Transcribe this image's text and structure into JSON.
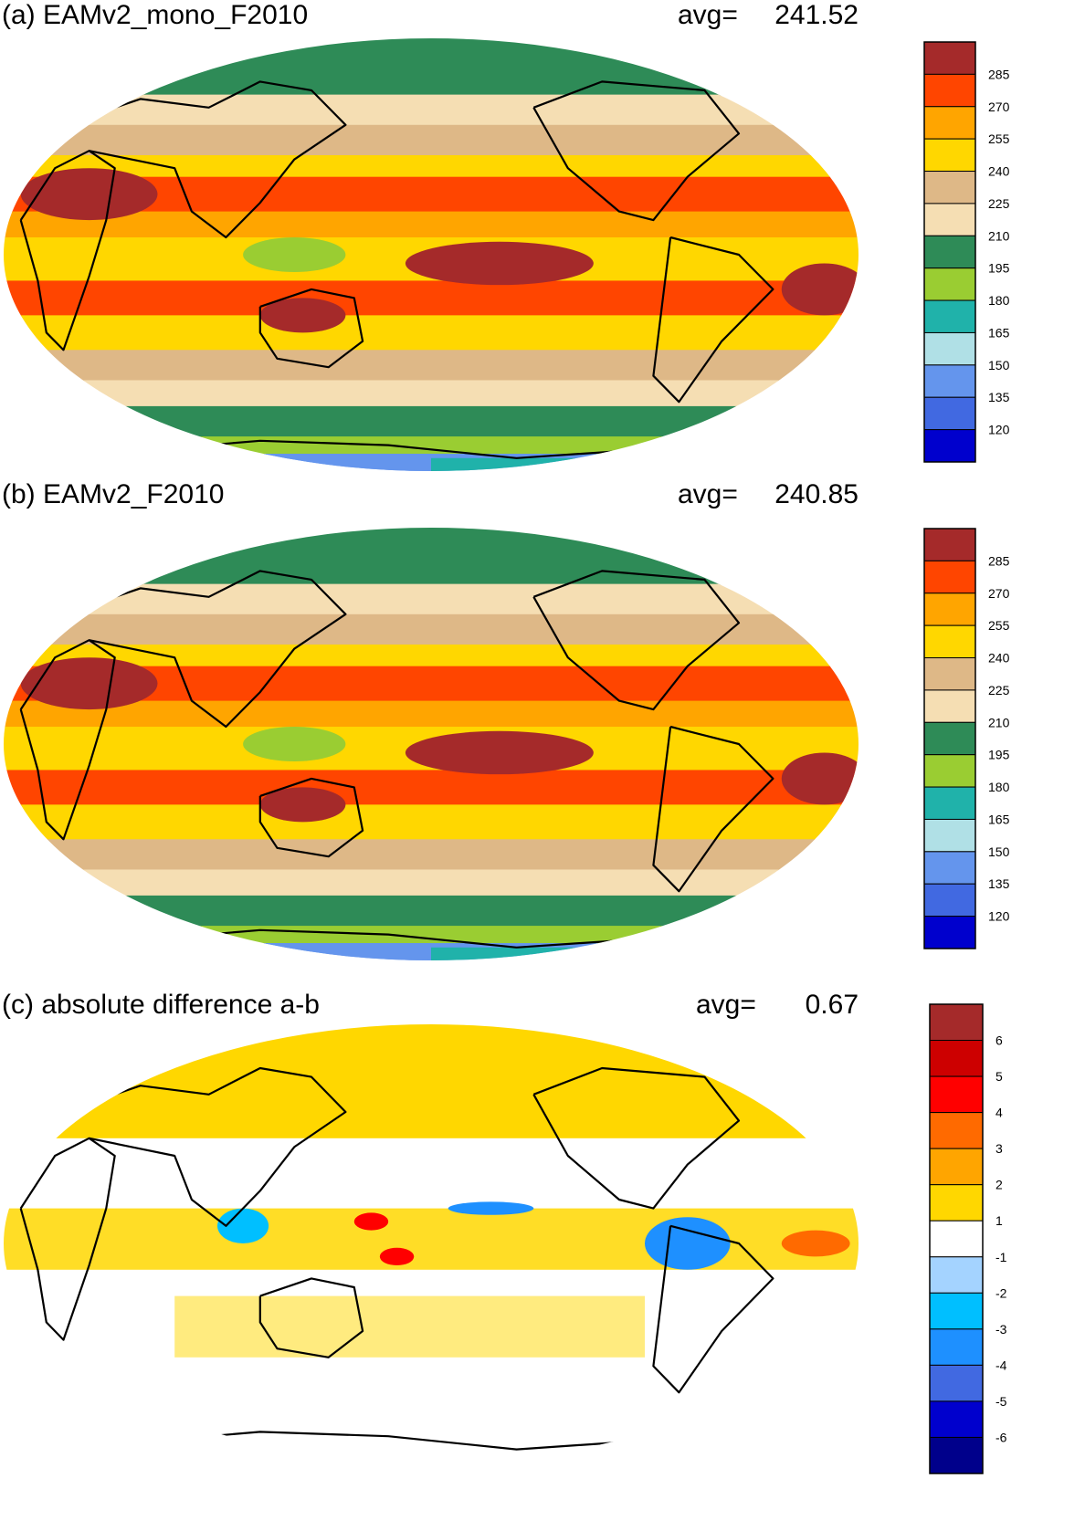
{
  "panels": [
    {
      "id": "a",
      "title": "(a) EAMv2_mono_F2010",
      "avg_label": "avg=",
      "avg_value": "241.52",
      "colorbar": {
        "colors": [
          "#a52a2a",
          "#ff4500",
          "#ffa500",
          "#ffd700",
          "#deb887",
          "#f5deb3",
          "#2e8b57",
          "#9acd32",
          "#20b2aa",
          "#b0e0e6",
          "#6495ed",
          "#4169e1",
          "#0000cd"
        ],
        "labels": [
          "285",
          "270",
          "255",
          "240",
          "225",
          "210",
          "195",
          "180",
          "165",
          "150",
          "135",
          "120"
        ]
      }
    },
    {
      "id": "b",
      "title": "(b) EAMv2_F2010",
      "avg_label": "avg=",
      "avg_value": "240.85",
      "colorbar": {
        "colors": [
          "#a52a2a",
          "#ff4500",
          "#ffa500",
          "#ffd700",
          "#deb887",
          "#f5deb3",
          "#2e8b57",
          "#9acd32",
          "#20b2aa",
          "#b0e0e6",
          "#6495ed",
          "#4169e1",
          "#0000cd"
        ],
        "labels": [
          "285",
          "270",
          "255",
          "240",
          "225",
          "210",
          "195",
          "180",
          "165",
          "150",
          "135",
          "120"
        ]
      }
    },
    {
      "id": "c",
      "title": "(c) absolute difference a-b",
      "avg_label": "avg=",
      "avg_value": "0.67",
      "colorbar": {
        "colors": [
          "#a52a2a",
          "#cd0000",
          "#ff0000",
          "#ff6a00",
          "#ffa500",
          "#ffd700",
          "#ffffff",
          "#a4d3ff",
          "#00bfff",
          "#1e90ff",
          "#4169e1",
          "#0000cd",
          "#00008b"
        ],
        "labels": [
          "6",
          "5",
          "4",
          "3",
          "2",
          "1",
          "-1",
          "-2",
          "-3",
          "-4",
          "-5",
          "-6"
        ]
      }
    }
  ]
}
